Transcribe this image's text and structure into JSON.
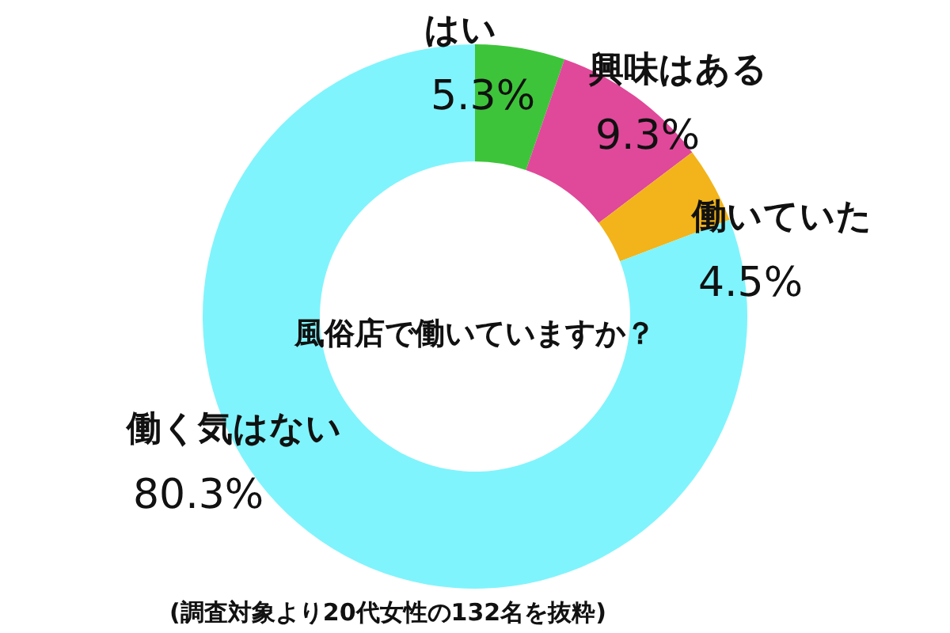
{
  "chart_data": {
    "type": "donut",
    "title": "風俗店で働いていますか？",
    "categories": [
      "はい",
      "興味はある",
      "働いていた",
      "働く気はない"
    ],
    "values": [
      5.3,
      9.3,
      4.5,
      80.3
    ],
    "value_labels": [
      "5.3%",
      "9.3%",
      "4.5%",
      "80.3%"
    ],
    "colors": [
      "#3ec43a",
      "#e0489a",
      "#f2b41a",
      "#80f4fc"
    ],
    "annotations": [
      "(調査対象より20代女性の132名を抜粋)"
    ]
  }
}
